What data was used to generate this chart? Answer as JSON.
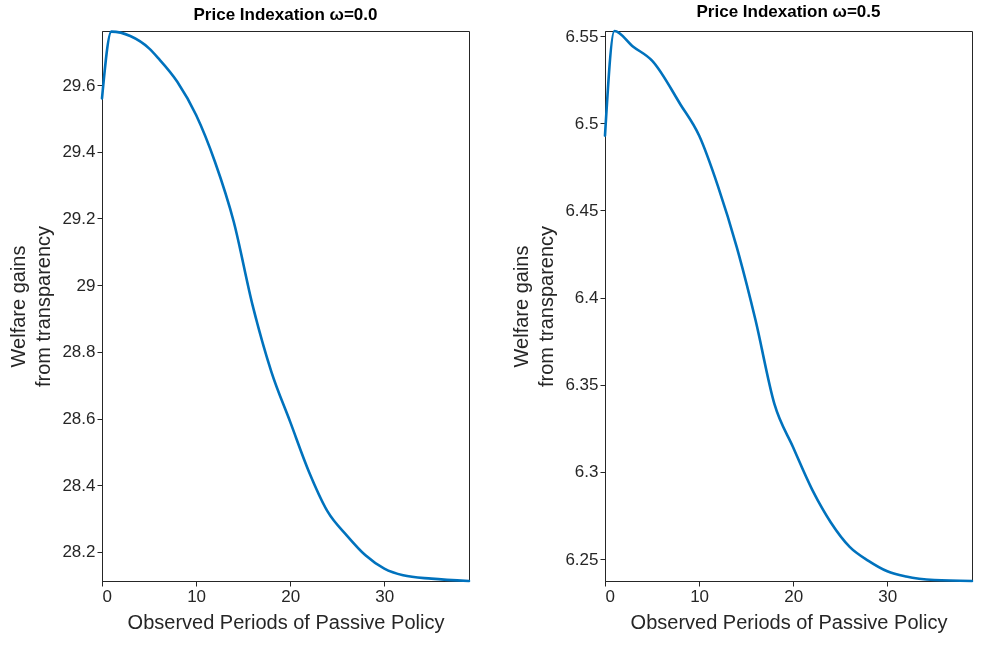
{
  "chart_data": [
    {
      "type": "line",
      "title": "Price Indexation ω=0.0",
      "xlabel": "Observed Periods of Passive Policy",
      "ylabel": "Welfare gains\nfrom transparency",
      "grid": false,
      "x": [
        0,
        1,
        3,
        5,
        6,
        8,
        10,
        12,
        14,
        16,
        18,
        20,
        22,
        24,
        26,
        28,
        30,
        32,
        35,
        39
      ],
      "series": [
        {
          "color": "#0072bd",
          "values": [
            29.56,
            29.76,
            29.747,
            29.71,
            29.68,
            29.61,
            29.51,
            29.37,
            29.19,
            28.94,
            28.74,
            28.59,
            28.44,
            28.32,
            28.25,
            28.19,
            28.15,
            28.13,
            28.12,
            28.113
          ]
        }
      ],
      "xlim": [
        0,
        39
      ],
      "ylim": [
        28.113,
        29.762
      ],
      "xticks": [
        0,
        10,
        20,
        30
      ],
      "yticks": [
        28.2,
        28.4,
        28.6,
        28.8,
        29,
        29.2,
        29.4,
        29.6
      ]
    },
    {
      "type": "line",
      "title": "Price Indexation ω=0.5",
      "xlabel": "Observed Periods of Passive Policy",
      "ylabel": "Welfare gains\nfrom transparency",
      "grid": false,
      "x": [
        0,
        1,
        3,
        5,
        8,
        10,
        12,
        14,
        16,
        18,
        20,
        22,
        24,
        26,
        28,
        30,
        32,
        35,
        39
      ],
      "series": [
        {
          "color": "#0072bd",
          "values": [
            6.493,
            6.553,
            6.544,
            6.536,
            6.511,
            6.493,
            6.464,
            6.429,
            6.387,
            6.339,
            6.314,
            6.29,
            6.271,
            6.257,
            6.249,
            6.243,
            6.24,
            6.238,
            6.2374
          ]
        }
      ],
      "xlim": [
        0,
        39
      ],
      "ylim": [
        6.2374,
        6.553
      ],
      "xticks": [
        0,
        10,
        20,
        30
      ],
      "yticks": [
        6.25,
        6.3,
        6.35,
        6.4,
        6.45,
        6.5,
        6.55
      ]
    }
  ]
}
